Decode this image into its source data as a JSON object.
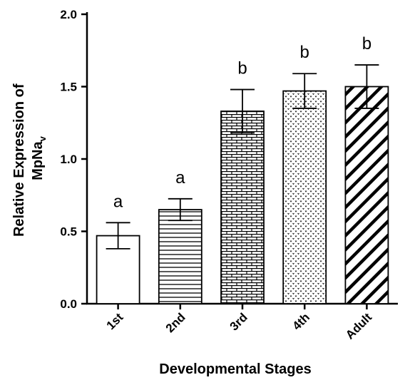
{
  "chart_data": {
    "type": "bar",
    "categories": [
      "1st",
      "2nd",
      "3rd",
      "4th",
      "Adult"
    ],
    "values": [
      0.47,
      0.65,
      1.33,
      1.47,
      1.5
    ],
    "errors": [
      0.09,
      0.075,
      0.15,
      0.12,
      0.15
    ],
    "significance_letters": [
      "a",
      "a",
      "b",
      "b",
      "b"
    ],
    "bar_patterns": [
      "none",
      "horizontal-lines",
      "bricks",
      "dots",
      "diagonal-lines"
    ],
    "xlabel": "Developmental Stages",
    "ylabel": {
      "line1": "Relative Expression of",
      "line2_main": "MpNa",
      "line2_sub": "v"
    },
    "ylim": [
      0,
      2.0
    ],
    "yticks": [
      "0.0",
      "0.5",
      "1.0",
      "1.5",
      "2.0"
    ],
    "ytick_values": [
      0,
      0.5,
      1.0,
      1.5,
      2.0
    ],
    "grid": false,
    "legend": "none",
    "colors": {
      "bar_stroke": "#000000",
      "bar_fill": "#ffffff",
      "pattern": "#000000"
    }
  }
}
